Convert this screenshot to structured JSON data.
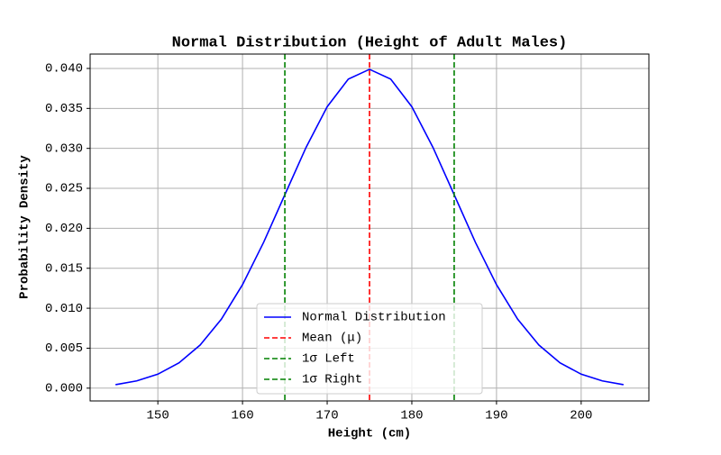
{
  "chart_data": {
    "type": "line",
    "title": "Normal Distribution (Height of Adult Males)",
    "x_label": "Height (cm)",
    "y_label": "Probability Density",
    "x": [
      145,
      147.5,
      150,
      152.5,
      155,
      157.5,
      160,
      162.5,
      165,
      167.5,
      170,
      172.5,
      175,
      177.5,
      180,
      182.5,
      185,
      187.5,
      190,
      192.5,
      195,
      197.5,
      200,
      202.5,
      205
    ],
    "series": [
      {
        "name": "Normal Distribution",
        "color": "#0000ff",
        "values": [
          0.00044,
          0.00091,
          0.00175,
          0.00317,
          0.0054,
          0.00863,
          0.01295,
          0.01826,
          0.0242,
          0.03011,
          0.03521,
          0.03867,
          0.03989,
          0.03867,
          0.03521,
          0.03011,
          0.0242,
          0.01826,
          0.01295,
          0.00863,
          0.0054,
          0.00317,
          0.00175,
          0.00091,
          0.00044
        ]
      }
    ],
    "vlines": [
      {
        "name": "Mean (μ)",
        "color": "#ff0000",
        "x": 175
      },
      {
        "name": "1σ Left",
        "color": "#008000",
        "x": 165
      },
      {
        "name": "1σ Right",
        "color": "#008000",
        "x": 185
      }
    ],
    "xlim": [
      142,
      208
    ],
    "xticks": [
      150,
      160,
      170,
      180,
      190,
      200
    ],
    "ylim": [
      -0.0016,
      0.0418
    ],
    "yticks": [
      {
        "value": 0,
        "label": "0.000"
      },
      {
        "value": 0.005,
        "label": "0.005"
      },
      {
        "value": 0.01,
        "label": "0.010"
      },
      {
        "value": 0.015,
        "label": "0.015"
      },
      {
        "value": 0.02,
        "label": "0.020"
      },
      {
        "value": 0.025,
        "label": "0.025"
      },
      {
        "value": 0.03,
        "label": "0.030"
      },
      {
        "value": 0.035,
        "label": "0.035"
      },
      {
        "value": 0.04,
        "label": "0.040"
      }
    ],
    "grid": true,
    "legend": "lower center"
  }
}
